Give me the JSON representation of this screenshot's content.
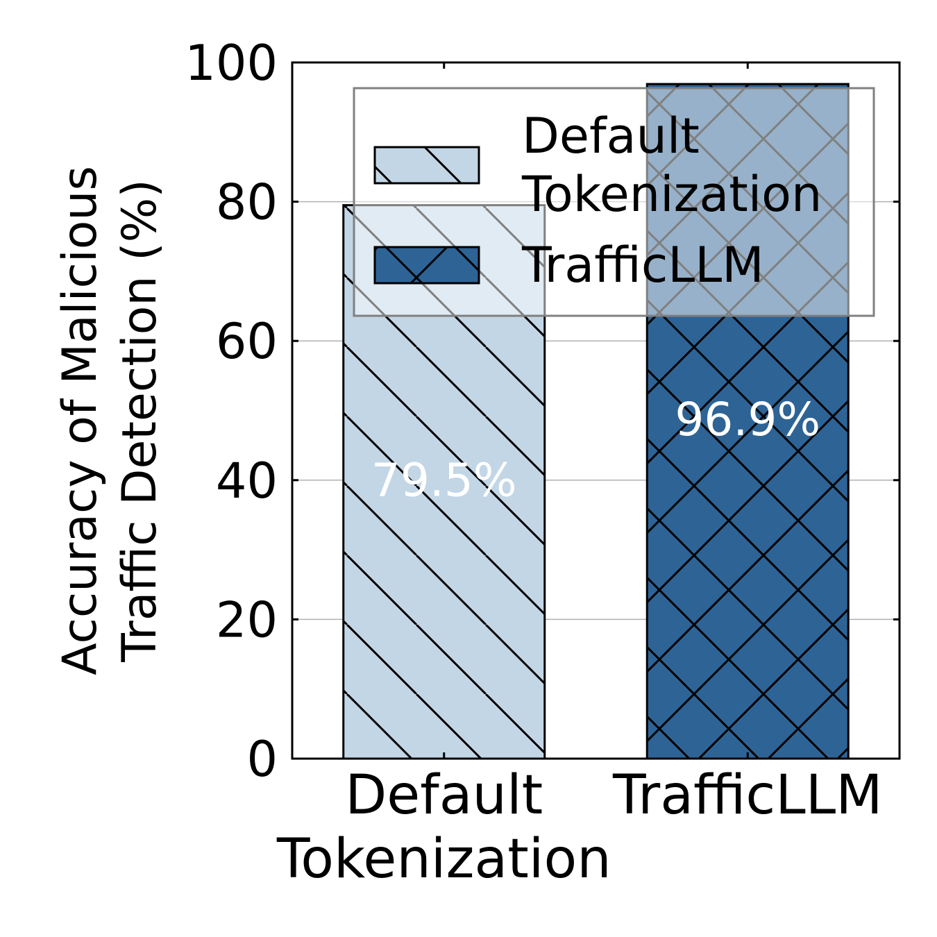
{
  "chart_data": {
    "type": "bar",
    "categories": [
      [
        "Default",
        "Tokenization"
      ],
      [
        "TrafficLLM"
      ]
    ],
    "values": [
      79.5,
      96.9
    ],
    "data_labels": [
      "79.5%",
      "96.9%"
    ],
    "colors": [
      "#c3d6e6",
      "#2e6395"
    ],
    "hatches": [
      "diagonal",
      "crosshatch"
    ],
    "ylabel": [
      "Accuracy of Malicious",
      "Traffic Detection (%)"
    ],
    "ylim": [
      0,
      100
    ],
    "yticks": [
      0,
      20,
      40,
      60,
      80,
      100
    ],
    "grid": true,
    "legend": {
      "placement": "top-right",
      "entries": [
        {
          "label": [
            "Default",
            "Tokenization"
          ],
          "color": "#c3d6e6",
          "hatch": "diagonal"
        },
        {
          "label": [
            "TrafficLLM"
          ],
          "color": "#2e6395",
          "hatch": "crosshatch"
        }
      ]
    }
  }
}
